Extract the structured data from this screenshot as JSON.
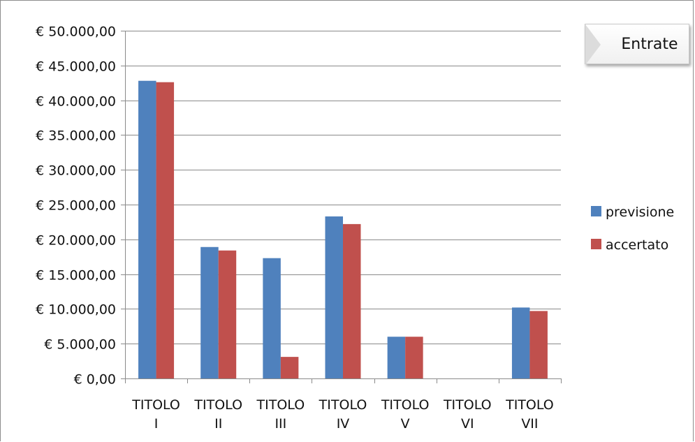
{
  "chart_data": {
    "type": "bar",
    "title": "Entrate",
    "categories": [
      [
        "TITOLO",
        "I"
      ],
      [
        "TITOLO",
        "II"
      ],
      [
        "TITOLO",
        "III"
      ],
      [
        "TITOLO",
        "IV"
      ],
      [
        "TITOLO",
        "V"
      ],
      [
        "TITOLO",
        "VI"
      ],
      [
        "TITOLO",
        "VII"
      ]
    ],
    "series": [
      {
        "name": "previsione",
        "color": "#4F81BD",
        "values": [
          42800,
          18900,
          17300,
          23300,
          6000,
          0,
          10200
        ]
      },
      {
        "name": "accertato",
        "color": "#C0504D",
        "values": [
          42600,
          18400,
          3100,
          22200,
          6000,
          0,
          9700
        ]
      }
    ],
    "ylim": [
      0,
      50000
    ],
    "yticks": [
      0,
      5000,
      10000,
      15000,
      20000,
      25000,
      30000,
      35000,
      40000,
      45000,
      50000
    ],
    "ytick_labels": [
      "€ 0,00",
      "€ 5.000,00",
      "€ 10.000,00",
      "€ 15.000,00",
      "€ 20.000,00",
      "€ 25.000,00",
      "€ 30.000,00",
      "€ 35.000,00",
      "€ 40.000,00",
      "€ 45.000,00",
      "€ 50.000,00"
    ],
    "grid": true,
    "legend_position": "right",
    "xlabel": "",
    "ylabel": ""
  }
}
